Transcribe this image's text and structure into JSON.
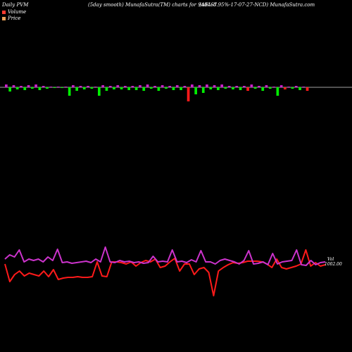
{
  "header": {
    "left": "Daily PVM",
    "middle": "(5day smooth) MunafaSutra(TM) charts for 940467",
    "right": "(AEL-8.95%-17-07-27-NCD) MunafaSutra.com"
  },
  "legend": [
    {
      "label": "Volume",
      "color": "#ff3b30"
    },
    {
      "label": "Price",
      "color": "#e8a15a"
    }
  ],
  "colors": {
    "background": "#000000",
    "baseline": "#d9d9d9",
    "volume_up": "#00ee00",
    "volume_down": "#ff1a1a",
    "volume_magenta": "#cc22cc",
    "price_line": "#ff1a1a",
    "volume_line": "#cc33cc"
  },
  "chart_data": [
    {
      "type": "bar",
      "title": "Volume",
      "values": [
        0.4,
        -0.6,
        0.3,
        -0.3,
        0.2,
        -0.4,
        0.3,
        -0.2,
        0.4,
        -0.4,
        0.2,
        -0.2,
        0.1,
        -0.1,
        0.1,
        -0.1,
        0.1,
        -1.2,
        0.3,
        -0.5,
        0.2,
        -0.3,
        0.2,
        -0.2,
        0.1,
        -1.2,
        0.3,
        -0.5,
        0.2,
        -0.3,
        0.3,
        -0.3,
        0.2,
        -0.4,
        0.2,
        -0.4,
        0.3,
        -0.5,
        0.4,
        -0.2,
        0.2,
        -0.5,
        0.3,
        -0.2,
        0.2,
        -0.4,
        0.3,
        -0.4,
        0.2,
        -2.0,
        0.4,
        -1.0,
        0.3,
        -0.8,
        0.4,
        -0.3,
        0.3,
        -0.4,
        0.4,
        -0.2,
        0.2,
        -0.3,
        0.2,
        -0.4,
        0.2,
        -0.5,
        0.4,
        -0.2,
        0.2,
        -0.5,
        0.3,
        -0.2,
        0.1,
        -1.2,
        0.3,
        -0.3,
        0.1,
        -0.2,
        0.2,
        -0.4,
        0.1,
        -0.5
      ],
      "colors": [
        "m",
        "g",
        "m",
        "g",
        "m",
        "g",
        "m",
        "g",
        "m",
        "g",
        "m",
        "g",
        "m",
        "g",
        "m",
        "g",
        "m",
        "g",
        "m",
        "g",
        "m",
        "g",
        "m",
        "g",
        "m",
        "g",
        "m",
        "g",
        "m",
        "g",
        "m",
        "g",
        "m",
        "g",
        "m",
        "g",
        "m",
        "g",
        "m",
        "g",
        "m",
        "g",
        "m",
        "g",
        "m",
        "g",
        "m",
        "g",
        "m",
        "r",
        "m",
        "g",
        "m",
        "g",
        "m",
        "g",
        "m",
        "g",
        "m",
        "g",
        "m",
        "g",
        "m",
        "g",
        "m",
        "r",
        "m",
        "g",
        "m",
        "g",
        "m",
        "g",
        "m",
        "g",
        "m",
        "r",
        "m",
        "g",
        "m",
        "g",
        "m",
        "r"
      ],
      "grid": false
    },
    {
      "type": "line",
      "title": "Price",
      "series": [
        {
          "name": "Price",
          "color": "#ff1a1a",
          "values": [
            375,
            400,
            390,
            385,
            392,
            388,
            390,
            392,
            385,
            393,
            383,
            397,
            395,
            394,
            394,
            393,
            394,
            394,
            393,
            372,
            392,
            393,
            372,
            372,
            373,
            375,
            372,
            378,
            373,
            370,
            372,
            368,
            380,
            378,
            372,
            367,
            385,
            375,
            375,
            390,
            382,
            380,
            387,
            420,
            385,
            380,
            376,
            373,
            374,
            373,
            371,
            371,
            371,
            372,
            375,
            380,
            368,
            380,
            382,
            380,
            378,
            375,
            355,
            378,
            373,
            378,
            376
          ],
          "label": "1002.00"
        },
        {
          "name": "Volume",
          "color": "#cc33cc",
          "values": [
            368,
            362,
            365,
            355,
            372,
            368,
            370,
            368,
            372,
            365,
            370,
            354,
            373,
            372,
            374,
            373,
            372,
            371,
            373,
            368,
            372,
            351,
            372,
            373,
            370,
            372,
            371,
            373,
            372,
            374,
            373,
            364,
            372,
            371,
            372,
            355,
            372,
            371,
            373,
            369,
            372,
            356,
            372,
            372,
            375,
            370,
            368,
            370,
            372,
            375,
            370,
            356,
            375,
            374,
            372,
            376,
            360,
            375,
            372,
            371,
            370,
            355,
            376,
            377,
            370,
            376,
            373,
            372
          ],
          "label": "Vol"
        }
      ]
    }
  ]
}
